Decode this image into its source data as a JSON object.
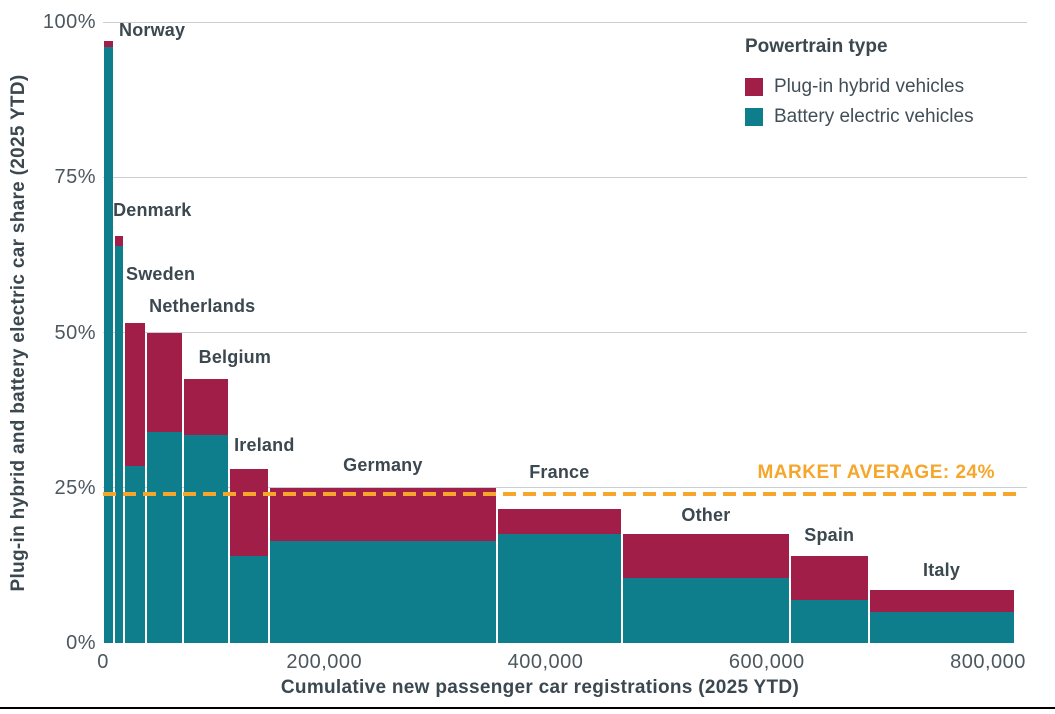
{
  "chart_data": {
    "type": "bar",
    "variant": "marimekko (variable-width stacked bars)",
    "title": "",
    "xlabel": "Cumulative new passenger car registrations (2025 YTD)",
    "ylabel": "Plug-in hybrid and battery electric car share (2025 YTD)",
    "xlim": [
      0,
      835000
    ],
    "ylim": [
      0,
      100
    ],
    "grid": "horizontal gridlines at 25/50/75/100",
    "colors": {
      "phev": "#A01E47",
      "bev": "#0E7D8C",
      "average_line": "#F5A62B",
      "gridline": "#cbcfd2",
      "label_text": "#3c4850",
      "tick_text": "#4c575f"
    },
    "y_ticks": [
      {
        "value": 0,
        "label": "0%"
      },
      {
        "value": 25,
        "label": "25%"
      },
      {
        "value": 50,
        "label": "50%"
      },
      {
        "value": 75,
        "label": "75%"
      },
      {
        "value": 100,
        "label": "100%"
      }
    ],
    "x_ticks": [
      {
        "value": 0,
        "label": "0"
      },
      {
        "value": 200000,
        "label": "200,000"
      },
      {
        "value": 400000,
        "label": "400,000"
      },
      {
        "value": 600000,
        "label": "600,000"
      },
      {
        "value": 800000,
        "label": "800,000"
      }
    ],
    "legend": {
      "title": "Powertrain type",
      "position": "top-right",
      "items": [
        {
          "label": "Plug-in hybrid vehicles",
          "color": "#A01E47"
        },
        {
          "label": "Battery electric vehicles",
          "color": "#0E7D8C"
        }
      ]
    },
    "market_average": {
      "label": "MARKET AVERAGE: 24%",
      "value": 24,
      "color": "#F5A62B",
      "style": "dashed"
    },
    "countries": [
      {
        "name": "Norway",
        "registrations": 10000,
        "bev_share_pct": 96.0,
        "phev_share_pct": 1.0,
        "total_share_pct": 97.0
      },
      {
        "name": "Denmark",
        "registrations": 9000,
        "bev_share_pct": 64.0,
        "phev_share_pct": 1.5,
        "total_share_pct": 65.5
      },
      {
        "name": "Sweden",
        "registrations": 20000,
        "bev_share_pct": 28.5,
        "phev_share_pct": 23.0,
        "total_share_pct": 51.5
      },
      {
        "name": "Netherlands",
        "registrations": 33000,
        "bev_share_pct": 34.0,
        "phev_share_pct": 16.0,
        "total_share_pct": 50.0
      },
      {
        "name": "Belgium",
        "registrations": 42000,
        "bev_share_pct": 33.5,
        "phev_share_pct": 9.0,
        "total_share_pct": 42.5
      },
      {
        "name": "Ireland",
        "registrations": 36000,
        "bev_share_pct": 14.0,
        "phev_share_pct": 14.0,
        "total_share_pct": 28.0
      },
      {
        "name": "Germany",
        "registrations": 206000,
        "bev_share_pct": 16.5,
        "phev_share_pct": 8.5,
        "total_share_pct": 25.0
      },
      {
        "name": "France",
        "registrations": 113000,
        "bev_share_pct": 17.5,
        "phev_share_pct": 4.0,
        "total_share_pct": 21.5
      },
      {
        "name": "Other",
        "registrations": 152000,
        "bev_share_pct": 10.5,
        "phev_share_pct": 7.0,
        "total_share_pct": 17.5
      },
      {
        "name": "Spain",
        "registrations": 71000,
        "bev_share_pct": 7.0,
        "phev_share_pct": 7.0,
        "total_share_pct": 14.0
      },
      {
        "name": "Italy",
        "registrations": 132000,
        "bev_share_pct": 5.0,
        "phev_share_pct": 3.5,
        "total_share_pct": 8.5
      }
    ]
  }
}
